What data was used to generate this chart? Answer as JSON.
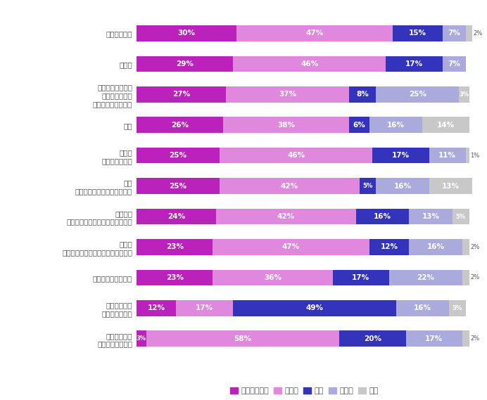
{
  "categories": [
    "通信サービス",
    "自動車",
    "メディア、娯楽、\n情報サービス・\nデータプロバイダー",
    "製造",
    "消費財\n（食品その他）",
    "保険\n（生命、土地、死亡、健康）",
    "ハイテク\n（ハードウェア、ソフトウェア）",
    "小売り\n（オンライン店舗、実店舗、通販）",
    "銀行・金融サービス",
    "旅客、運輸、\nホスピタリティ",
    "ヘルスケア＆\nライフサイエンス"
  ],
  "data": [
    [
      30,
      47,
      15,
      7,
      2
    ],
    [
      29,
      46,
      17,
      7,
      0
    ],
    [
      27,
      37,
      8,
      25,
      3
    ],
    [
      26,
      38,
      6,
      16,
      14
    ],
    [
      25,
      46,
      17,
      11,
      1
    ],
    [
      25,
      42,
      5,
      16,
      13
    ],
    [
      24,
      42,
      16,
      13,
      5
    ],
    [
      23,
      47,
      12,
      16,
      2
    ],
    [
      23,
      36,
      17,
      22,
      2
    ],
    [
      12,
      17,
      49,
      16,
      5
    ],
    [
      3,
      58,
      20,
      17,
      2
    ]
  ],
  "colors": [
    "#bb22bb",
    "#e088dd",
    "#3333bb",
    "#aaaadd",
    "#c8c8c8"
  ],
  "legend_labels": [
    "非常に大きい",
    "大きい",
    "普通",
    "少ない",
    "ない"
  ],
  "bar_height": 0.52,
  "figsize": [
    6.92,
    5.69
  ],
  "dpi": 100,
  "background_color": "#ffffff",
  "text_color": "#555555",
  "label_fontsize": 7.5,
  "legend_fontsize": 8,
  "tick_fontsize": 7.5
}
